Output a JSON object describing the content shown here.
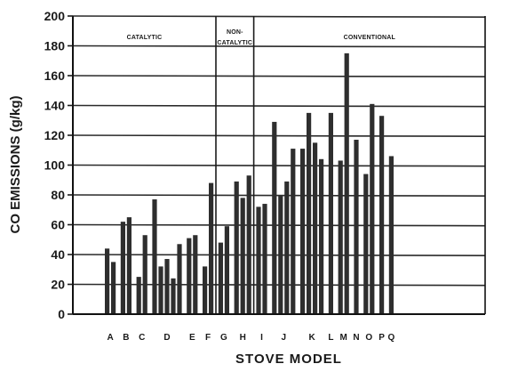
{
  "chart_data": {
    "type": "bar",
    "xlabel": "STOVE MODEL",
    "ylabel": "CO EMISSIONS (g/kg)",
    "ylim": [
      0,
      200
    ],
    "yticks": [
      0,
      20,
      40,
      60,
      80,
      100,
      120,
      140,
      160,
      180,
      200
    ],
    "grid": true,
    "sections": [
      "CATALYTIC",
      "NON-\nCATALYTIC",
      "CONVENTIONAL"
    ],
    "groups": [
      {
        "label": "A",
        "section": 0,
        "values": [
          44,
          35
        ]
      },
      {
        "label": "B",
        "section": 0,
        "values": [
          62,
          65
        ]
      },
      {
        "label": "C",
        "section": 0,
        "values": [
          25,
          53
        ]
      },
      {
        "label": "D",
        "section": 0,
        "values": [
          77,
          32,
          37,
          24,
          47
        ]
      },
      {
        "label": "E",
        "section": 0,
        "values": [
          51,
          53
        ]
      },
      {
        "label": "F",
        "section": 0,
        "values": [
          32,
          88
        ]
      },
      {
        "label": "G",
        "section": 1,
        "values": [
          48,
          59
        ]
      },
      {
        "label": "H",
        "section": 1,
        "values": [
          89,
          78,
          93
        ]
      },
      {
        "label": "I",
        "section": 2,
        "values": [
          72,
          74
        ]
      },
      {
        "label": "J",
        "section": 2,
        "values": [
          129,
          80,
          89,
          111
        ]
      },
      {
        "label": "K",
        "section": 2,
        "values": [
          111,
          135,
          115,
          104
        ]
      },
      {
        "label": "L",
        "section": 2,
        "values": [
          135
        ]
      },
      {
        "label": "M",
        "section": 2,
        "values": [
          103,
          175
        ]
      },
      {
        "label": "N",
        "section": 2,
        "values": [
          117
        ]
      },
      {
        "label": "O",
        "section": 2,
        "values": [
          94,
          141
        ]
      },
      {
        "label": "P",
        "section": 2,
        "values": [
          133
        ]
      },
      {
        "label": "Q",
        "section": 2,
        "values": [
          106
        ]
      }
    ]
  }
}
